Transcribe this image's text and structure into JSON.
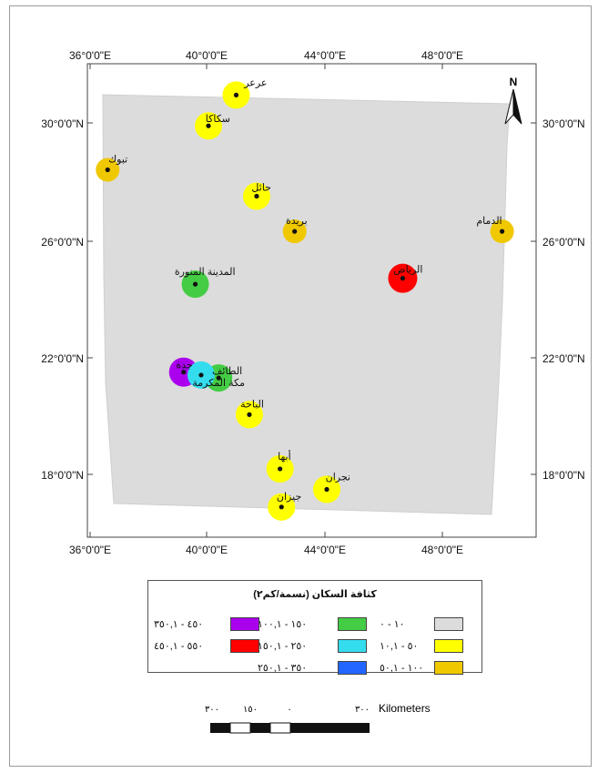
{
  "map": {
    "north_label": "N",
    "graticule": {
      "top_lon_labels": [
        "36°0'0\"E",
        "40°0'0\"E",
        "44°0'0\"E",
        "48°0'0\"E"
      ],
      "bottom_lon_labels": [
        "36°0'0\"E",
        "40°0'0\"E",
        "44°0'0\"E",
        "48°0'0\"E"
      ],
      "left_lat_labels": [
        "30°0'0\"N",
        "26°0'0\"N",
        "22°0'0\"N",
        "18°0'0\"N"
      ],
      "right_lat_labels": [
        "30°0'0\"N",
        "26°0'0\"N",
        "22°0'0\"N",
        "18°0'0\"N"
      ]
    },
    "cities": [
      {
        "name": "عرعر",
        "lon": 41.0,
        "lat": 30.95,
        "class": 1,
        "color": "#ffff00"
      },
      {
        "name": "سكاكا",
        "lon": 40.05,
        "lat": 29.9,
        "class": 1,
        "color": "#ffff00"
      },
      {
        "name": "تبوك",
        "lon": 36.6,
        "lat": 28.4,
        "class": 2,
        "color": "#f0c800"
      },
      {
        "name": "حائل",
        "lon": 41.7,
        "lat": 27.5,
        "class": 1,
        "color": "#ffff00"
      },
      {
        "name": "بريدة",
        "lon": 43.0,
        "lat": 26.3,
        "class": 2,
        "color": "#f0c800"
      },
      {
        "name": "الدمام",
        "lon": 50.1,
        "lat": 26.3,
        "class": 2,
        "color": "#f0c800"
      },
      {
        "name": "الرياض",
        "lon": 46.7,
        "lat": 24.7,
        "class": 6,
        "color": "#ff0000"
      },
      {
        "name": "المدينة المنورة",
        "lon": 39.6,
        "lat": 24.5,
        "class": 3,
        "color": "#44cc44"
      },
      {
        "name": "جدة",
        "lon": 39.2,
        "lat": 21.5,
        "class": 5,
        "color": "#aa00ee"
      },
      {
        "name": "الطائف",
        "lon": 40.4,
        "lat": 21.3,
        "class": 3,
        "color": "#44cc44"
      },
      {
        "name": "مكة المكرمة",
        "lon": 39.8,
        "lat": 21.4,
        "class": 4,
        "color": "#33ddee"
      },
      {
        "name": "الباحة",
        "lon": 41.45,
        "lat": 20.05,
        "class": 1,
        "color": "#ffff00"
      },
      {
        "name": "أبها",
        "lon": 42.5,
        "lat": 18.2,
        "class": 1,
        "color": "#ffff00"
      },
      {
        "name": "نجران",
        "lon": 44.1,
        "lat": 17.5,
        "class": 1,
        "color": "#ffff00"
      },
      {
        "name": "جيزان",
        "lon": 42.55,
        "lat": 16.9,
        "class": 1,
        "color": "#ffff00"
      }
    ],
    "colors": {
      "study_area": "#dcdcdc",
      "frame": "#444444"
    }
  },
  "legend": {
    "title": "كثافة السكان (نسمة/كم٢)",
    "items": [
      {
        "label": "١٠ - ٠",
        "color": "#dcdcdc"
      },
      {
        "label": "٥٠ - ١٠,١",
        "color": "#ffff00"
      },
      {
        "label": "١٠٠ - ٥٠,١",
        "color": "#f0c800"
      },
      {
        "label": "١٥٠ - ١٠٠,١",
        "color": "#44cc44"
      },
      {
        "label": "٢٥٠ - ١٥٠,١",
        "color": "#33ddee"
      },
      {
        "label": "٣٥٠ - ٢٥٠,١",
        "color": "#2266ff"
      },
      {
        "label": "٤٥٠ - ٣٥٠,١",
        "color": "#aa00ee"
      },
      {
        "label": "٥٥٠ - ٤٥٠,١",
        "color": "#ff0000"
      }
    ]
  },
  "scalebar": {
    "tick_labels": [
      "٣٠٠",
      "١٥٠",
      "٠"
    ],
    "right_value": "٣٠٠",
    "units": "Kilometers"
  }
}
